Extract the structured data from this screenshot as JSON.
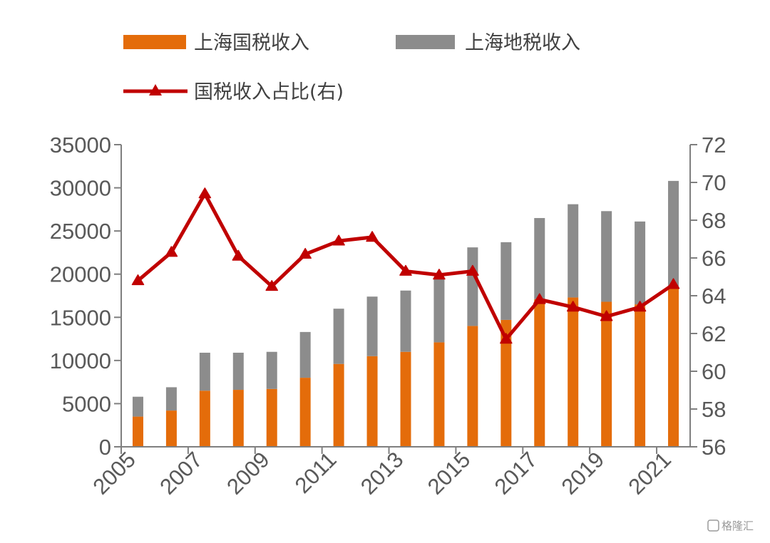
{
  "chart_data": {
    "type": "bar",
    "title": "",
    "xlabel": "",
    "ylabel": "",
    "ylabel_right": "",
    "categories": [
      "2005",
      "2006",
      "2007",
      "2008",
      "2009",
      "2010",
      "2011",
      "2012",
      "2013",
      "2014",
      "2015",
      "2016",
      "2017",
      "2018",
      "2019",
      "2020",
      "2021"
    ],
    "x_tick_labels": [
      "2005",
      "2007",
      "2009",
      "2011",
      "2013",
      "2015",
      "2017",
      "2019",
      "2021"
    ],
    "ylim": [
      0,
      35000
    ],
    "y_ticks": [
      "0",
      "5000",
      "10000",
      "15000",
      "20000",
      "25000",
      "30000",
      "35000"
    ],
    "y2lim": [
      56,
      72
    ],
    "y2_ticks": [
      "56",
      "58",
      "60",
      "62",
      "64",
      "66",
      "68",
      "70",
      "72"
    ],
    "stacked": true,
    "legend_position": "top",
    "grid": false,
    "series": [
      {
        "name": "上海国税收入",
        "type": "bar",
        "axis": "left",
        "color": "#E46C0A",
        "values": [
          3500,
          4200,
          6500,
          6600,
          6700,
          8000,
          9600,
          10500,
          11000,
          12100,
          14000,
          14700,
          17100,
          17300,
          16800,
          16500,
          18300
        ]
      },
      {
        "name": "上海地税收入",
        "type": "bar",
        "axis": "left",
        "color": "#8C8C8C",
        "values": [
          2300,
          2700,
          4400,
          4300,
          4300,
          5300,
          6400,
          6900,
          7100,
          7400,
          9100,
          9000,
          9400,
          10800,
          10500,
          9600,
          12500
        ]
      },
      {
        "name": "国税收入占比(右)",
        "type": "line",
        "axis": "right",
        "color": "#C00000",
        "marker": "triangle",
        "values": [
          64.8,
          66.3,
          69.4,
          66.1,
          64.5,
          66.2,
          66.9,
          67.1,
          65.3,
          65.1,
          65.3,
          61.7,
          63.8,
          63.4,
          62.9,
          63.4,
          64.6
        ]
      }
    ]
  },
  "watermark": "格隆汇"
}
